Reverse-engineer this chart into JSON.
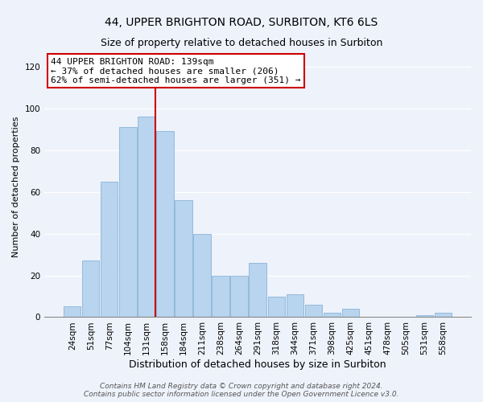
{
  "title": "44, UPPER BRIGHTON ROAD, SURBITON, KT6 6LS",
  "subtitle": "Size of property relative to detached houses in Surbiton",
  "xlabel": "Distribution of detached houses by size in Surbiton",
  "ylabel": "Number of detached properties",
  "bar_labels": [
    "24sqm",
    "51sqm",
    "77sqm",
    "104sqm",
    "131sqm",
    "158sqm",
    "184sqm",
    "211sqm",
    "238sqm",
    "264sqm",
    "291sqm",
    "318sqm",
    "344sqm",
    "371sqm",
    "398sqm",
    "425sqm",
    "451sqm",
    "478sqm",
    "505sqm",
    "531sqm",
    "558sqm"
  ],
  "bar_values": [
    5,
    27,
    65,
    91,
    96,
    89,
    56,
    40,
    20,
    20,
    26,
    10,
    11,
    6,
    2,
    4,
    0,
    0,
    0,
    1,
    2
  ],
  "bar_color": "#b8d4ee",
  "bar_edge_color": "#8ab4d8",
  "red_line_color": "#cc0000",
  "red_line_bar_index": 4,
  "annotation_text": "44 UPPER BRIGHTON ROAD: 139sqm\n← 37% of detached houses are smaller (206)\n62% of semi-detached houses are larger (351) →",
  "annotation_box_facecolor": "#ffffff",
  "annotation_box_edgecolor": "#cc0000",
  "ylim": [
    0,
    125
  ],
  "yticks": [
    0,
    20,
    40,
    60,
    80,
    100,
    120
  ],
  "footer_line1": "Contains HM Land Registry data © Crown copyright and database right 2024.",
  "footer_line2": "Contains public sector information licensed under the Open Government Licence v3.0.",
  "bg_color": "#eef2fb",
  "grid_color": "#ffffff",
  "title_fontsize": 10,
  "subtitle_fontsize": 9,
  "xlabel_fontsize": 9,
  "ylabel_fontsize": 8,
  "tick_fontsize": 7.5,
  "annotation_fontsize": 8,
  "footer_fontsize": 6.5
}
